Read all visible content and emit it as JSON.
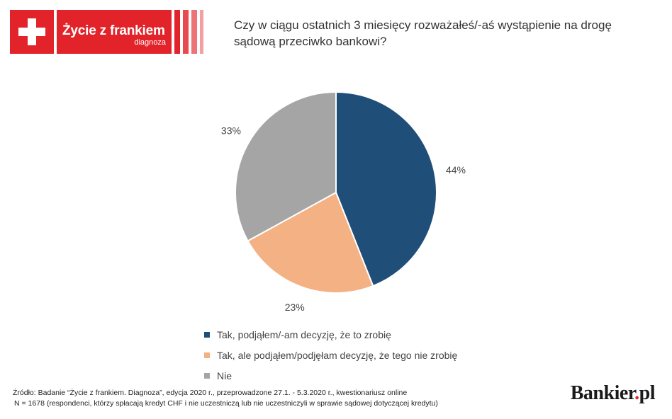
{
  "logo": {
    "title": "Życie z frankiem",
    "subtitle": "diagnoza",
    "color": "#e3232a",
    "stripe_colors": [
      "#e3232a",
      "#e84a4f",
      "#ee7377",
      "#f3a0a3"
    ]
  },
  "question": "Czy w ciągu ostatnich 3 miesięcy rozważałeś/-aś wystąpienie na drogę sądową przeciwko bankowi?",
  "chart_data": {
    "type": "pie",
    "slices": [
      {
        "label": "Tak, podjąłem/-am decyzję, że to zrobię",
        "value": 44,
        "value_label": "44%",
        "color": "#1f4e79"
      },
      {
        "label": "Tak, ale podjąłem/podjęłam decyzję, że tego nie zrobię",
        "value": 23,
        "value_label": "23%",
        "color": "#f4b183"
      },
      {
        "label": "Nie",
        "value": 33,
        "value_label": "33%",
        "color": "#a5a5a5"
      }
    ],
    "legend_position": "bottom"
  },
  "source": {
    "line1": "Źródło: Badanie “Życie z frankiem. Diagnoza”, edycja 2020 r., przeprowadzone 27.1. - 5.3.2020 r., kwestionariusz online",
    "line2": "N = 1678 (respondenci, którzy spłacają kredyt CHF i nie uczestniczą lub nie uczestniczyli w sprawie sądowej dotyczącej kredytu)"
  },
  "brand": {
    "name": "Bankier",
    "dot": ".",
    "suffix": "pl"
  }
}
